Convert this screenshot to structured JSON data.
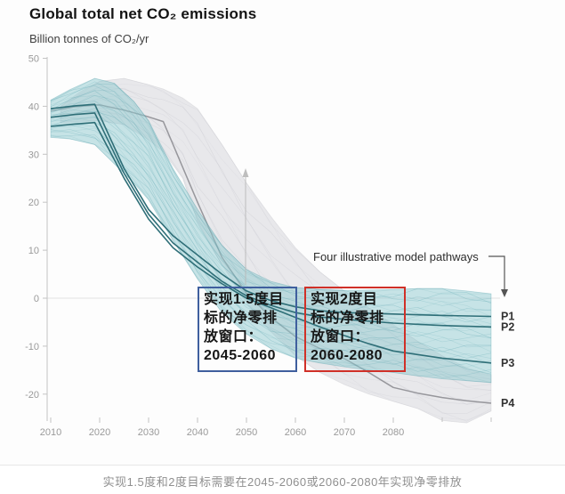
{
  "header": {
    "title": "Global total net CO₂ emissions",
    "subtitle": "Billion tonnes of CO₂/yr"
  },
  "annotations": {
    "pathways_label": "Four illustrative model pathways",
    "window_1p5": {
      "lines": [
        "实现1.5度目",
        "标的净零排",
        "放窗口：",
        "2045-2060"
      ],
      "border_color": "#3f5f9e"
    },
    "window_2": {
      "lines": [
        "实现2度目",
        "标的净零排",
        "放窗口：",
        "2060-2080"
      ],
      "border_color": "#d03028"
    }
  },
  "caption": "实现1.5度和2度目标需要在2045-2060或2060-2080年实现净零排放",
  "colors": {
    "teal_band": "#8fc9cf",
    "teal_streak": "#4f9faa",
    "teal_line": "#2f6f78",
    "grey_band": "#dddde2",
    "grey_streak": "#bcbcc4",
    "grey_line": "#97979c",
    "axis": "#c4c4c4",
    "tick_text": "#9a9a9a",
    "grid": "#e3e3e3",
    "up_arrow": "#b8b8b8",
    "pathways_arrow": "#555555",
    "pathway_label_text": "#333333"
  },
  "chart_data": {
    "type": "area",
    "title": "Global total net CO₂ emissions",
    "ylabel": "Billion tonnes of CO₂/yr",
    "xlabel": "",
    "xlim": [
      2010,
      2100
    ],
    "ylim": [
      -27,
      50
    ],
    "y_ticks": [
      50,
      40,
      30,
      20,
      10,
      0,
      -10,
      -20
    ],
    "x_ticks_labeled": [
      2010,
      2020,
      2030,
      2040,
      2050,
      2060,
      2070,
      2080
    ],
    "x_ticks_unlabeled": [
      2090,
      2100
    ],
    "grid": "single horizontal gridline at 0",
    "legend": "pathway labels P1–P4 at right edge of lines",
    "bands": [
      {
        "name": "2C-pathway-range",
        "color": "#dddde2",
        "opacity": 0.65,
        "points": [
          [
            2012,
            36.5,
            40
          ],
          [
            2016,
            36.8,
            43
          ],
          [
            2020,
            37,
            45.2
          ],
          [
            2025,
            36.2,
            45.8
          ],
          [
            2030,
            33,
            44.5
          ],
          [
            2033,
            30.5,
            43.6
          ],
          [
            2037,
            25,
            41.7
          ],
          [
            2040,
            16,
            39.5
          ],
          [
            2045,
            7,
            32
          ],
          [
            2050,
            -1,
            24
          ],
          [
            2055,
            -7,
            17
          ],
          [
            2060,
            -12,
            10.5
          ],
          [
            2065,
            -15.5,
            5.5
          ],
          [
            2070,
            -18,
            1.5
          ],
          [
            2075,
            -20,
            -2
          ],
          [
            2080,
            -21.5,
            -5.5
          ],
          [
            2085,
            -23,
            -9
          ],
          [
            2090,
            -25.5,
            -12
          ],
          [
            2095,
            -26,
            -14.5
          ],
          [
            2100,
            -23.5,
            -16
          ]
        ]
      },
      {
        "name": "1.5C-pathway-range",
        "color": "#8fc9cf",
        "opacity": 0.5,
        "points": [
          [
            2010,
            33.5,
            41.3
          ],
          [
            2014,
            33.2,
            43.5
          ],
          [
            2019,
            32,
            45.8
          ],
          [
            2023,
            28,
            44.8
          ],
          [
            2027,
            24,
            41
          ],
          [
            2030,
            20.5,
            37
          ],
          [
            2035,
            12,
            27
          ],
          [
            2040,
            4,
            18.5
          ],
          [
            2045,
            -3,
            11
          ],
          [
            2050,
            -7.5,
            6
          ],
          [
            2055,
            -10.5,
            3.5
          ],
          [
            2060,
            -12.5,
            2.2
          ],
          [
            2065,
            -13.5,
            1.8
          ],
          [
            2070,
            -14.3,
            1.6
          ],
          [
            2075,
            -15,
            1.7
          ],
          [
            2080,
            -15.5,
            1.8
          ],
          [
            2085,
            -16.2,
            2
          ],
          [
            2090,
            -16.8,
            2
          ],
          [
            2095,
            -17.2,
            1.5
          ],
          [
            2100,
            -17.6,
            0.9
          ]
        ]
      }
    ],
    "series": [
      {
        "name": "P1",
        "color": "#2f6f78",
        "points": [
          [
            2010,
            39.5
          ],
          [
            2015,
            40.1
          ],
          [
            2019,
            40.4
          ],
          [
            2025,
            27
          ],
          [
            2030,
            18.5
          ],
          [
            2035,
            13
          ],
          [
            2040,
            9
          ],
          [
            2045,
            5
          ],
          [
            2050,
            1.5
          ],
          [
            2055,
            -0.5
          ],
          [
            2060,
            -1.8
          ],
          [
            2065,
            -2.6
          ],
          [
            2070,
            -3
          ],
          [
            2080,
            -3.3
          ],
          [
            2090,
            -3.6
          ],
          [
            2100,
            -3.8
          ]
        ]
      },
      {
        "name": "P2",
        "color": "#2f6f78",
        "points": [
          [
            2010,
            37.7
          ],
          [
            2015,
            38.3
          ],
          [
            2019,
            38.6
          ],
          [
            2025,
            26
          ],
          [
            2030,
            17.5
          ],
          [
            2035,
            11.5
          ],
          [
            2040,
            7.5
          ],
          [
            2045,
            3.5
          ],
          [
            2050,
            0.5
          ],
          [
            2055,
            -1.5
          ],
          [
            2060,
            -3
          ],
          [
            2065,
            -3.9
          ],
          [
            2070,
            -4.4
          ],
          [
            2080,
            -5.2
          ],
          [
            2090,
            -5.7
          ],
          [
            2100,
            -6
          ]
        ]
      },
      {
        "name": "P3",
        "color": "#2f6f78",
        "points": [
          [
            2010,
            35.8
          ],
          [
            2015,
            36.3
          ],
          [
            2019,
            36.6
          ],
          [
            2025,
            25
          ],
          [
            2030,
            16.5
          ],
          [
            2035,
            10.5
          ],
          [
            2040,
            6.5
          ],
          [
            2045,
            3
          ],
          [
            2050,
            0
          ],
          [
            2055,
            -2
          ],
          [
            2060,
            -4
          ],
          [
            2065,
            -6
          ],
          [
            2070,
            -7.8
          ],
          [
            2075,
            -9.5
          ],
          [
            2080,
            -11
          ],
          [
            2090,
            -12.5
          ],
          [
            2100,
            -13.5
          ]
        ]
      },
      {
        "name": "P4",
        "color": "#97979c",
        "points": [
          [
            2010,
            39
          ],
          [
            2015,
            39.9
          ],
          [
            2020,
            40.3
          ],
          [
            2025,
            39.2
          ],
          [
            2030,
            37.8
          ],
          [
            2033,
            36.8
          ],
          [
            2040,
            20
          ],
          [
            2045,
            8.5
          ],
          [
            2050,
            1
          ],
          [
            2055,
            -4
          ],
          [
            2060,
            -8
          ],
          [
            2065,
            -10.5
          ],
          [
            2070,
            -12.6
          ],
          [
            2075,
            -15.5
          ],
          [
            2080,
            -18.6
          ],
          [
            2085,
            -19.8
          ],
          [
            2090,
            -20.7
          ],
          [
            2095,
            -21.4
          ],
          [
            2100,
            -21.9
          ]
        ]
      }
    ]
  }
}
